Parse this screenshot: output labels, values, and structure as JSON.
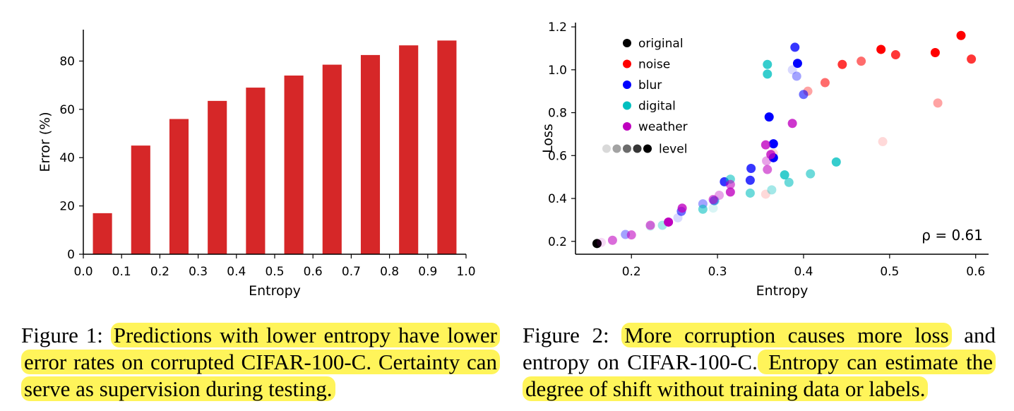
{
  "chart_data": [
    {
      "type": "bar",
      "xlabel": "Entropy",
      "ylabel": "Error (%)",
      "xlim": [
        0.0,
        1.0
      ],
      "ylim": [
        0,
        93
      ],
      "xticks": [
        "0.0",
        "0.1",
        "0.2",
        "0.3",
        "0.4",
        "0.5",
        "0.6",
        "0.7",
        "0.8",
        "0.9",
        "1.0"
      ],
      "yticks": [
        "0",
        "20",
        "40",
        "60",
        "80"
      ],
      "bar_centers": [
        0.05,
        0.15,
        0.25,
        0.35,
        0.45,
        0.55,
        0.65,
        0.75,
        0.85,
        0.95
      ],
      "values": [
        17,
        45,
        56,
        63.5,
        69,
        74,
        78.5,
        82.5,
        86.5,
        88.5
      ],
      "color": "#d62728"
    },
    {
      "type": "scatter",
      "xlabel": "Entropy",
      "ylabel": "Loss",
      "xlim": [
        0.135,
        0.615
      ],
      "ylim": [
        0.14,
        1.22
      ],
      "xticks": [
        "0.2",
        "0.3",
        "0.4",
        "0.5",
        "0.6"
      ],
      "yticks": [
        "0.2",
        "0.4",
        "0.6",
        "0.8",
        "1.0",
        "1.2"
      ],
      "annotation": "ρ = 0.61",
      "legend_position": "top-left",
      "legend": [
        {
          "label": "original",
          "color": "#000000"
        },
        {
          "label": "noise",
          "color": "#ff0000"
        },
        {
          "label": "blur",
          "color": "#0000ff"
        },
        {
          "label": "digital",
          "color": "#00bfbf"
        },
        {
          "label": "weather",
          "color": "#bf00bf"
        },
        {
          "label": "level",
          "color": "#000000"
        }
      ],
      "series": [
        {
          "name": "original",
          "color": "#000000",
          "points": [
            {
              "x": 0.16,
              "y": 0.19,
              "level": 5
            }
          ]
        },
        {
          "name": "noise",
          "color": "#ff0000",
          "points": [
            {
              "x": 0.356,
              "y": 0.42,
              "level": 1
            },
            {
              "x": 0.405,
              "y": 0.9,
              "level": 2
            },
            {
              "x": 0.425,
              "y": 0.94,
              "level": 3
            },
            {
              "x": 0.445,
              "y": 1.025,
              "level": 4
            },
            {
              "x": 0.467,
              "y": 1.04,
              "level": 3
            },
            {
              "x": 0.49,
              "y": 1.095,
              "level": 5
            },
            {
              "x": 0.507,
              "y": 1.07,
              "level": 4
            },
            {
              "x": 0.553,
              "y": 1.08,
              "level": 5
            },
            {
              "x": 0.583,
              "y": 1.16,
              "level": 5
            },
            {
              "x": 0.595,
              "y": 1.05,
              "level": 4
            },
            {
              "x": 0.556,
              "y": 0.845,
              "level": 2
            },
            {
              "x": 0.492,
              "y": 0.665,
              "level": 1
            },
            {
              "x": 0.365,
              "y": 0.61,
              "level": 1
            }
          ]
        },
        {
          "name": "blur",
          "color": "#0000ff",
          "points": [
            {
              "x": 0.39,
              "y": 1.105,
              "level": 4
            },
            {
              "x": 0.393,
              "y": 1.03,
              "level": 5
            },
            {
              "x": 0.387,
              "y": 1.0,
              "level": 1
            },
            {
              "x": 0.392,
              "y": 0.97,
              "level": 2
            },
            {
              "x": 0.4,
              "y": 0.885,
              "level": 3
            },
            {
              "x": 0.36,
              "y": 0.78,
              "level": 5
            },
            {
              "x": 0.365,
              "y": 0.655,
              "level": 5
            },
            {
              "x": 0.365,
              "y": 0.59,
              "level": 5
            },
            {
              "x": 0.339,
              "y": 0.54,
              "level": 4
            },
            {
              "x": 0.338,
              "y": 0.485,
              "level": 4
            },
            {
              "x": 0.308,
              "y": 0.478,
              "level": 4
            },
            {
              "x": 0.296,
              "y": 0.39,
              "level": 3
            },
            {
              "x": 0.283,
              "y": 0.375,
              "level": 2
            },
            {
              "x": 0.258,
              "y": 0.34,
              "level": 3
            },
            {
              "x": 0.254,
              "y": 0.31,
              "level": 1
            },
            {
              "x": 0.193,
              "y": 0.232,
              "level": 2
            }
          ]
        },
        {
          "name": "digital",
          "color": "#00bfbf",
          "points": [
            {
              "x": 0.358,
              "y": 1.025,
              "level": 4
            },
            {
              "x": 0.358,
              "y": 0.98,
              "level": 4
            },
            {
              "x": 0.438,
              "y": 0.57,
              "level": 4
            },
            {
              "x": 0.408,
              "y": 0.515,
              "level": 3
            },
            {
              "x": 0.378,
              "y": 0.51,
              "level": 4
            },
            {
              "x": 0.383,
              "y": 0.475,
              "level": 3
            },
            {
              "x": 0.315,
              "y": 0.49,
              "level": 3
            },
            {
              "x": 0.363,
              "y": 0.44,
              "level": 2
            },
            {
              "x": 0.338,
              "y": 0.425,
              "level": 3
            },
            {
              "x": 0.297,
              "y": 0.39,
              "level": 2
            },
            {
              "x": 0.295,
              "y": 0.355,
              "level": 1
            },
            {
              "x": 0.283,
              "y": 0.35,
              "level": 3
            },
            {
              "x": 0.236,
              "y": 0.275,
              "level": 2
            },
            {
              "x": 0.222,
              "y": 0.27,
              "level": 1
            }
          ]
        },
        {
          "name": "weather",
          "color": "#bf00bf",
          "points": [
            {
              "x": 0.387,
              "y": 0.75,
              "level": 4
            },
            {
              "x": 0.356,
              "y": 0.65,
              "level": 4
            },
            {
              "x": 0.362,
              "y": 0.605,
              "level": 4
            },
            {
              "x": 0.357,
              "y": 0.575,
              "level": 2
            },
            {
              "x": 0.358,
              "y": 0.535,
              "level": 3
            },
            {
              "x": 0.315,
              "y": 0.465,
              "level": 3
            },
            {
              "x": 0.315,
              "y": 0.43,
              "level": 4
            },
            {
              "x": 0.302,
              "y": 0.415,
              "level": 2
            },
            {
              "x": 0.295,
              "y": 0.395,
              "level": 3
            },
            {
              "x": 0.259,
              "y": 0.355,
              "level": 4
            },
            {
              "x": 0.243,
              "y": 0.29,
              "level": 5
            },
            {
              "x": 0.222,
              "y": 0.275,
              "level": 3
            },
            {
              "x": 0.2,
              "y": 0.23,
              "level": 3
            },
            {
              "x": 0.178,
              "y": 0.205,
              "level": 3
            },
            {
              "x": 0.165,
              "y": 0.195,
              "level": 1
            }
          ]
        }
      ]
    }
  ],
  "captions": {
    "fig1": {
      "prefix": "Figure 1: ",
      "highlight1": "Predictions with lower entropy have lower error rates on corrupted CIFAR-100-C. Certainty can serve as supervision during testing."
    },
    "fig2": {
      "prefix": "Figure 2: ",
      "highlight1": "More corruption causes more loss",
      "middle": " and entropy on CIFAR-100-C.",
      "highlight2": " Entropy can estimate the degree of shift without training data or labels."
    }
  }
}
